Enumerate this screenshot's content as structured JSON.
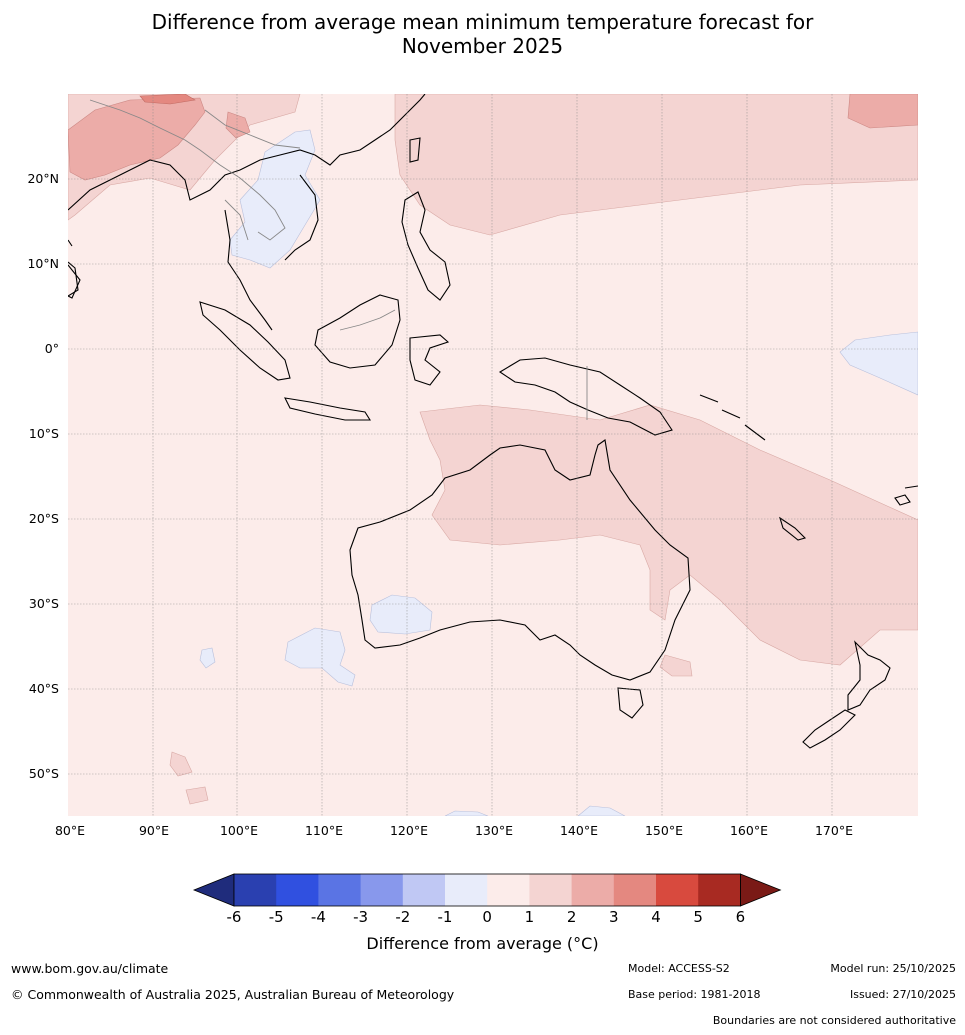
{
  "title_line1": "Difference from average mean minimum temperature forecast for",
  "title_line2": "November 2025",
  "map": {
    "lat_labels": [
      "20°N",
      "10°N",
      "0°",
      "10°S",
      "20°S",
      "30°S",
      "40°S",
      "50°S"
    ],
    "lon_labels": [
      "80°E",
      "90°E",
      "100°E",
      "110°E",
      "120°E",
      "130°E",
      "140°E",
      "150°E",
      "160°E",
      "170°E"
    ],
    "background_anomaly_class": "0 to 1"
  },
  "colorbar": {
    "ticks": [
      "-6",
      "-5",
      "-4",
      "-3",
      "-2",
      "-1",
      "0",
      "1",
      "2",
      "3",
      "4",
      "5",
      "6"
    ],
    "colors": [
      "#1f2c7c",
      "#2a40b0",
      "#3050e0",
      "#5a74e4",
      "#8898ec",
      "#c0c8f4",
      "#e8ecfa",
      "#fcecea",
      "#f4d4d2",
      "#ecaca8",
      "#e48880",
      "#d84a3e",
      "#a82a22",
      "#7a1a16"
    ],
    "label": "Difference from average (°C)"
  },
  "footer": {
    "website": "www.bom.gov.au/climate",
    "copyright": "© Commonwealth of Australia 2025, Australian Bureau of Meteorology",
    "model": "Model: ACCESS-S2",
    "base_period": "Base period: 1981-2018",
    "model_run": "Model run: 25/10/2025",
    "issued": "Issued: 27/10/2025",
    "disclaimer": "Boundaries are not considered authoritative"
  }
}
